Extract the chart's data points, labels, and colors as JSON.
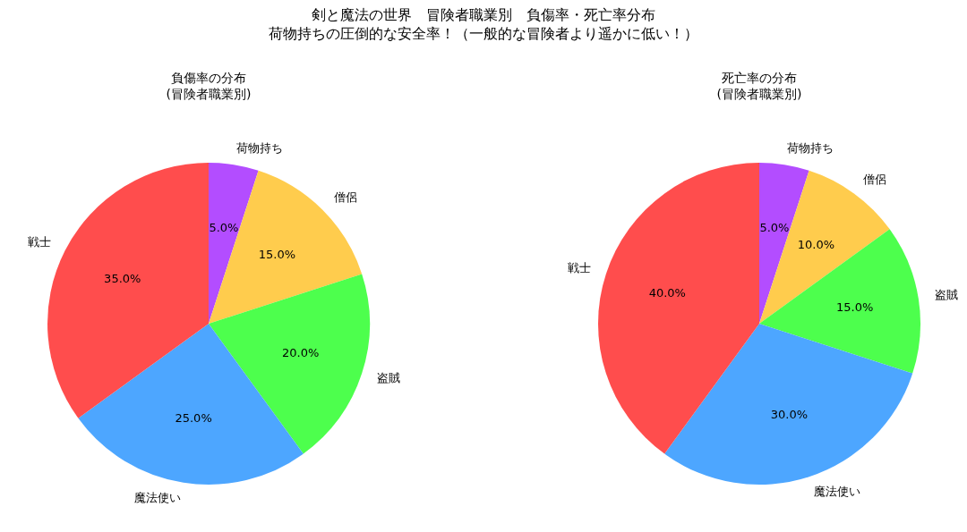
{
  "chart_data": [
    {
      "type": "other",
      "title": "剣と魔法の世界　冒険者職業別　負傷率・死亡率分布",
      "subtitle": "荷物持ちの圧倒的な安全率！（一般的な冒険者より遥かに低い！）"
    },
    {
      "type": "pie",
      "title": "負傷率の分布\n(冒険者職業別)",
      "categories": [
        "荷物持ち",
        "僧侶",
        "盗賊",
        "魔法使い",
        "戦士"
      ],
      "values": [
        5,
        15,
        20,
        25,
        35
      ],
      "colors": [
        "#b34dff",
        "#ffcc4d",
        "#4dff4d",
        "#4da6ff",
        "#ff4d4d"
      ],
      "value_labels": [
        "5.0%",
        "15.0%",
        "20.0%",
        "25.0%",
        "35.0%"
      ]
    },
    {
      "type": "pie",
      "title": "死亡率の分布\n(冒険者職業別)",
      "categories": [
        "荷物持ち",
        "僧侶",
        "盗賊",
        "魔法使い",
        "戦士"
      ],
      "values": [
        5,
        10,
        15,
        30,
        40
      ],
      "colors": [
        "#b34dff",
        "#ffcc4d",
        "#4dff4d",
        "#4da6ff",
        "#ff4d4d"
      ],
      "value_labels": [
        "5.0%",
        "10.0%",
        "15.0%",
        "30.0%",
        "40.0%"
      ]
    }
  ]
}
